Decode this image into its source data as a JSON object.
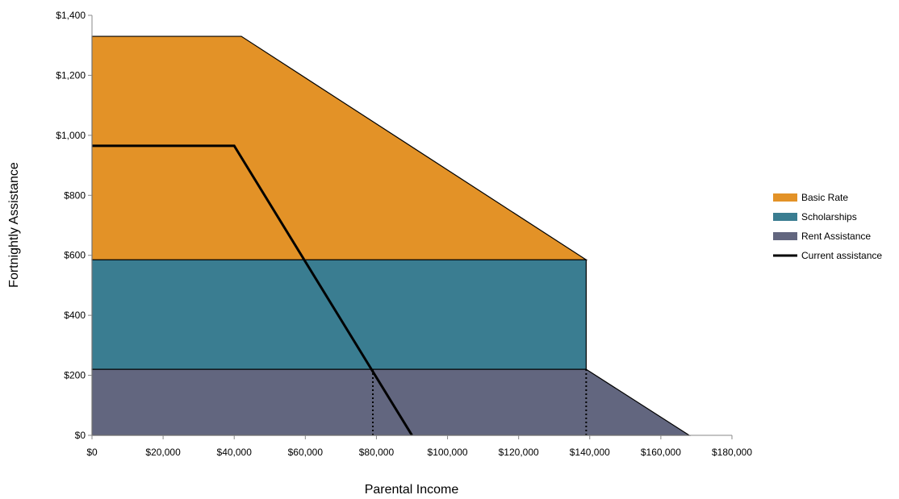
{
  "chart_data": {
    "type": "area",
    "xlabel": "Parental Income",
    "ylabel": "Fortnightly Assistance",
    "xlim": [
      0,
      180000
    ],
    "ylim": [
      0,
      1400
    ],
    "x_ticks": [
      "$0",
      "$20,000",
      "$40,000",
      "$60,000",
      "$80,000",
      "$100,000",
      "$120,000",
      "$140,000",
      "$160,000",
      "$180,000"
    ],
    "y_ticks": [
      "$0",
      "$200",
      "$400",
      "$600",
      "$800",
      "$1,000",
      "$1,200",
      "$1,400"
    ],
    "legend_position": "right",
    "stacked": true,
    "series": [
      {
        "name": "Basic Rate",
        "kind": "area",
        "color": "#e39227",
        "points": [
          [
            0,
            1330
          ],
          [
            42000,
            1330
          ],
          [
            139000,
            585
          ]
        ],
        "base": 585
      },
      {
        "name": "Scholarships",
        "kind": "area",
        "color": "#3a7d91",
        "points": [
          [
            0,
            585
          ],
          [
            139000,
            585
          ]
        ],
        "base": 220
      },
      {
        "name": "Rent Assistance",
        "kind": "area",
        "color": "#62667f",
        "points": [
          [
            0,
            220
          ],
          [
            139000,
            220
          ],
          [
            168000,
            0
          ]
        ],
        "base": 0
      },
      {
        "name": "Current assistance",
        "kind": "line",
        "color": "#000000",
        "points": [
          [
            0,
            965
          ],
          [
            40000,
            965
          ],
          [
            90000,
            0
          ]
        ]
      }
    ],
    "reference_lines": [
      {
        "x": 79000,
        "from": 0,
        "to": 220,
        "style": "dotted"
      },
      {
        "x": 139000,
        "from": 0,
        "to": 220,
        "style": "dotted"
      }
    ]
  }
}
